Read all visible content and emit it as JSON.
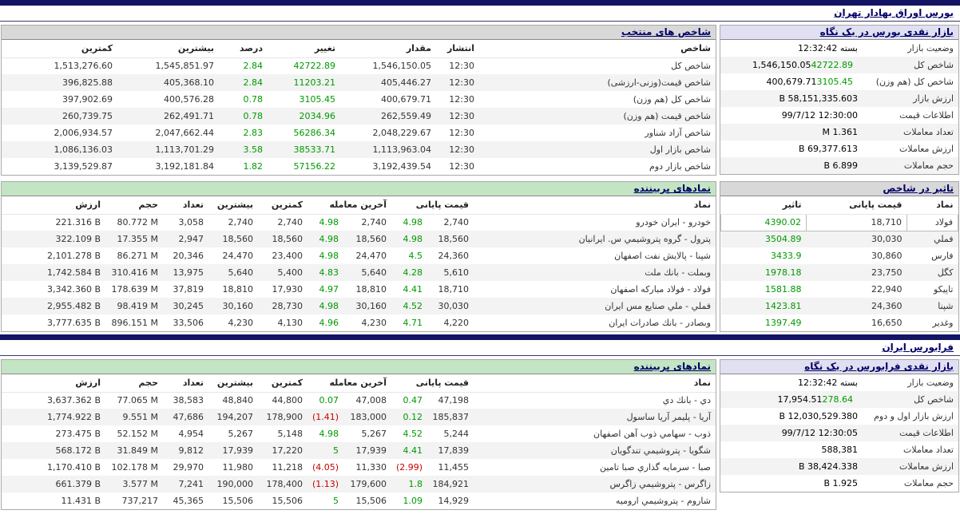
{
  "colors": {
    "green": "#009900",
    "red": "#cc0000",
    "navy_title": "#000066",
    "top_bar": "#141464",
    "green_header": "#c3e5c3",
    "blue_header": "#e0e0f2",
    "gray_header": "#d8d8d8"
  },
  "tse": {
    "title": "بورس اوراق بهادار تهران",
    "glance": {
      "title": "بازار نقدی بورس در یک نگاه",
      "rows": [
        {
          "label": "وضعیت بازار",
          "value": "بسته 12:32:42"
        },
        {
          "label": "شاخص کل",
          "value": "1,546,150.05",
          "change": "42722.89"
        },
        {
          "label": "شاخص کل (هم وزن)",
          "value": "400,679.71",
          "change": "3105.45"
        },
        {
          "label": "ارزش بازار",
          "value": "58,151,335.603 B"
        },
        {
          "label": "اطلاعات قیمت",
          "value": "12:30:00 99/7/12"
        },
        {
          "label": "تعداد معاملات",
          "value": "1.361 M"
        },
        {
          "label": "ارزش معاملات",
          "value": "69,377.613 B"
        },
        {
          "label": "حجم معاملات",
          "value": "6.899 B"
        }
      ]
    },
    "indices": {
      "title": "شاخص های منتخب",
      "headers": [
        "شاخص",
        "انتشار",
        "مقدار",
        "تغییر",
        "درصد",
        "بیشترین",
        "کمترین"
      ],
      "rows": [
        {
          "name": "شاخص کل",
          "pub": "12:30",
          "value": "1,546,150.05",
          "change": "42722.89",
          "pct": "2.84",
          "high": "1,545,851.97",
          "low": "1,513,276.60"
        },
        {
          "name": "شاخص قیمت(وزنی-ارزشی)",
          "pub": "12:30",
          "value": "405,446.27",
          "change": "11203.21",
          "pct": "2.84",
          "high": "405,368.10",
          "low": "396,825.88"
        },
        {
          "name": "شاخص کل (هم وزن)",
          "pub": "12:30",
          "value": "400,679.71",
          "change": "3105.45",
          "pct": "0.78",
          "high": "400,576.28",
          "low": "397,902.69"
        },
        {
          "name": "شاخص قیمت (هم وزن)",
          "pub": "12:30",
          "value": "262,559.49",
          "change": "2034.96",
          "pct": "0.78",
          "high": "262,491.71",
          "low": "260,739.75"
        },
        {
          "name": "شاخص آزاد شناور",
          "pub": "12:30",
          "value": "2,048,229.67",
          "change": "56286.34",
          "pct": "2.83",
          "high": "2,047,662.44",
          "low": "2,006,934.57"
        },
        {
          "name": "شاخص بازار اول",
          "pub": "12:30",
          "value": "1,113,963.04",
          "change": "38533.71",
          "pct": "3.58",
          "high": "1,113,701.29",
          "low": "1,086,136.03"
        },
        {
          "name": "شاخص بازار دوم",
          "pub": "12:30",
          "value": "3,192,439.54",
          "change": "57156.22",
          "pct": "1.82",
          "high": "3,192,181.84",
          "low": "3,139,529.87"
        }
      ]
    },
    "watched": {
      "title": "نمادهای پربیننده",
      "headers": [
        "نماد",
        "قیمت پایانی",
        "آخرین معامله",
        "کمترین",
        "بیشترین",
        "تعداد",
        "حجم",
        "ارزش"
      ],
      "rows": [
        {
          "name": "خودرو - ایران خودرو",
          "close": "2,740",
          "close_pct": "4.98",
          "last": "2,740",
          "last_pct": "4.98",
          "low": "2,740",
          "high": "2,740",
          "count": "3,058",
          "volume": "80.772 M",
          "value": "221.316 B"
        },
        {
          "name": "پترول - گروه پتروشیمي س. ایرانیان",
          "close": "18,560",
          "close_pct": "4.98",
          "last": "18,560",
          "last_pct": "4.98",
          "low": "18,560",
          "high": "18,560",
          "count": "2,947",
          "volume": "17.355 M",
          "value": "322.109 B"
        },
        {
          "name": "شپنا - پالایش نفت اصفهان",
          "close": "24,360",
          "close_pct": "4.5",
          "last": "24,470",
          "last_pct": "4.98",
          "low": "23,400",
          "high": "24,470",
          "count": "20,346",
          "volume": "86.271 M",
          "value": "2,101.278 B"
        },
        {
          "name": "وبملت - بانك ملت",
          "close": "5,610",
          "close_pct": "4.28",
          "last": "5,640",
          "last_pct": "4.83",
          "low": "5,400",
          "high": "5,640",
          "count": "13,975",
          "volume": "310.416 M",
          "value": "1,742.584 B"
        },
        {
          "name": "فولاد - فولاد مباركه اصفهان",
          "close": "18,710",
          "close_pct": "4.41",
          "last": "18,810",
          "last_pct": "4.97",
          "low": "17,930",
          "high": "18,810",
          "count": "37,819",
          "volume": "178.639 M",
          "value": "3,342.360 B"
        },
        {
          "name": "فملي - ملي صنایع مس ایران",
          "close": "30,030",
          "close_pct": "4.52",
          "last": "30,160",
          "last_pct": "4.98",
          "low": "28,730",
          "high": "30,160",
          "count": "30,245",
          "volume": "98.419 M",
          "value": "2,955.482 B"
        },
        {
          "name": "وبصادر - بانك صادرات ایران",
          "close": "4,220",
          "close_pct": "4.71",
          "last": "4,230",
          "last_pct": "4.96",
          "low": "4,130",
          "high": "4,230",
          "count": "33,506",
          "volume": "896.151 M",
          "value": "3,777.635 B"
        }
      ]
    },
    "impact": {
      "title": "تاثیر در شاخص",
      "headers": [
        "نماد",
        "قیمت پایانی",
        "تاثیر"
      ],
      "rows": [
        {
          "name": "فولاد",
          "close": "18,710",
          "impact": "4390.02"
        },
        {
          "name": "فملي",
          "close": "30,030",
          "impact": "3504.89"
        },
        {
          "name": "فارس",
          "close": "30,860",
          "impact": "3433.9"
        },
        {
          "name": "کگل",
          "close": "23,750",
          "impact": "1978.18"
        },
        {
          "name": "تاپیکو",
          "close": "22,940",
          "impact": "1581.88"
        },
        {
          "name": "شپنا",
          "close": "24,360",
          "impact": "1423.81"
        },
        {
          "name": "وغدیر",
          "close": "16,650",
          "impact": "1397.49"
        }
      ]
    }
  },
  "ifb": {
    "title": "فرابورس ایران",
    "glance": {
      "title": "بازار نقدی فرابورس در یک نگاه",
      "rows": [
        {
          "label": "وضعیت بازار",
          "value": "بسته 12:32:42"
        },
        {
          "label": "شاخص کل",
          "value": "17,954.51",
          "change": "278.64"
        },
        {
          "label": "ارزش بازار اول و دوم",
          "value": "12,030,529.380 B"
        },
        {
          "label": "اطلاعات قیمت",
          "value": "12:30:05 99/7/12"
        },
        {
          "label": "تعداد معاملات",
          "value": "588,381"
        },
        {
          "label": "ارزش معاملات",
          "value": "38,424.338 B"
        },
        {
          "label": "حجم معاملات",
          "value": "1.925 B"
        }
      ]
    },
    "watched": {
      "title": "نمادهای پربیننده",
      "headers": [
        "نماد",
        "قیمت پایانی",
        "آخرین معامله",
        "کمترین",
        "بیشترین",
        "تعداد",
        "حجم",
        "ارزش"
      ],
      "rows": [
        {
          "name": "دي - بانك دي",
          "close": "47,198",
          "close_pct": "0.47",
          "last": "47,008",
          "last_pct": "0.07",
          "low": "44,800",
          "high": "48,840",
          "count": "38,583",
          "volume": "77.065 M",
          "value": "3,637.362 B"
        },
        {
          "name": "آریا - پلیمر آریا ساسول",
          "close": "185,837",
          "close_pct": "0.12",
          "last": "183,000",
          "last_pct": "(1.41)",
          "low": "178,900",
          "high": "194,207",
          "count": "47,686",
          "volume": "9.551 M",
          "value": "1,774.922 B"
        },
        {
          "name": "ذوب - سهامي ذوب آهن اصفهان",
          "close": "5,244",
          "close_pct": "4.52",
          "last": "5,267",
          "last_pct": "4.98",
          "low": "5,148",
          "high": "5,267",
          "count": "4,954",
          "volume": "52.152 M",
          "value": "273.475 B"
        },
        {
          "name": "شگویا - پتروشیمي تندگویان",
          "close": "17,839",
          "close_pct": "4.41",
          "last": "17,939",
          "last_pct": "5",
          "low": "17,220",
          "high": "17,939",
          "count": "9,812",
          "volume": "31.849 M",
          "value": "568.172 B"
        },
        {
          "name": "صبا - سرمایه گذاري صبا تامین",
          "close": "11,455",
          "close_pct": "(2.99)",
          "last": "11,330",
          "last_pct": "(4.05)",
          "low": "11,218",
          "high": "11,980",
          "count": "29,970",
          "volume": "102.178 M",
          "value": "1,170.410 B"
        },
        {
          "name": "زاگرس - پتروشیمي زاگرس",
          "close": "184,921",
          "close_pct": "1.8",
          "last": "179,600",
          "last_pct": "(1.13)",
          "low": "178,400",
          "high": "190,000",
          "count": "7,241",
          "volume": "3.577 M",
          "value": "661.379 B"
        },
        {
          "name": "شاروم - پتروشیمي ارومیه",
          "close": "14,929",
          "close_pct": "1.09",
          "last": "15,506",
          "last_pct": "5",
          "low": "15,506",
          "high": "15,506",
          "count": "45,365",
          "volume": "737,217",
          "value": "11.431 B"
        }
      ]
    }
  }
}
